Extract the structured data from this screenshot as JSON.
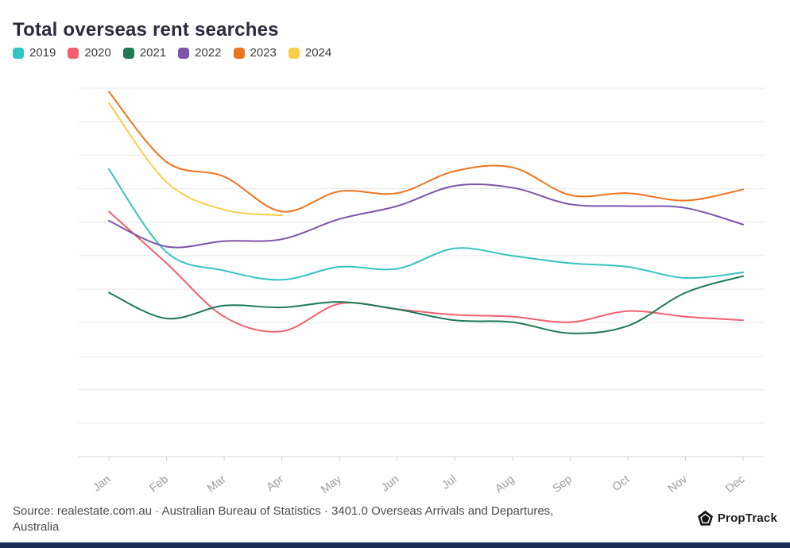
{
  "title": "Total overseas rent searches",
  "chart_data": {
    "type": "line",
    "title": "Total overseas rent searches",
    "categories": [
      "Jan",
      "Feb",
      "Mar",
      "Apr",
      "May",
      "Jun",
      "Jul",
      "Aug",
      "Sep",
      "Oct",
      "Nov",
      "Dec"
    ],
    "series": [
      {
        "name": "2019",
        "color": "#35c3c1",
        "values": [
          78,
          55.5,
          50.5,
          48,
          51.5,
          51,
          56.5,
          54.5,
          52.5,
          51.5,
          48.5,
          50
        ]
      },
      {
        "name": "2020",
        "color": "#f25f6f",
        "values": [
          66.5,
          52.5,
          38,
          34,
          41.5,
          40,
          38.5,
          38,
          36.5,
          39.5,
          38,
          37
        ]
      },
      {
        "name": "2021",
        "color": "#1d7a55",
        "values": [
          44.5,
          37.5,
          41,
          40.5,
          42,
          40,
          37,
          36.5,
          33.5,
          35.5,
          44.5,
          49
        ]
      },
      {
        "name": "2022",
        "color": "#7d55aa",
        "values": [
          64,
          57,
          58.5,
          59,
          64.5,
          68,
          73.5,
          73,
          68.5,
          68,
          67.5,
          63
        ]
      },
      {
        "name": "2023",
        "color": "#ee7420",
        "values": [
          99,
          80,
          76,
          66.5,
          72,
          71.5,
          77.5,
          78.5,
          71,
          71.5,
          69.5,
          72.5
        ]
      },
      {
        "name": "2024",
        "color": "#f9ce4b",
        "values": [
          96,
          74.5,
          67,
          65.5,
          null,
          null,
          null,
          null,
          null,
          null,
          null,
          null
        ]
      }
    ],
    "xlabel": "",
    "ylabel": "",
    "ylim": [
      0,
      100
    ],
    "y_axis_labels_visible": false,
    "grid": true,
    "gridline_count": 12,
    "legend_position": "top"
  },
  "footer": {
    "source_lines": [
      "Source: realestate.com.au · Australian Bureau of Statistics · 3401.0 Overseas Arrivals and Departures,",
      "Australia"
    ],
    "logo_text": "PropTrack"
  },
  "colors": {
    "title_text": "#2d2a3e",
    "axis_label": "#9d9d9d",
    "gridline": "#e9e9e9",
    "axis_line": "#d8d8d8",
    "bottom_bar": "#1b2d55"
  }
}
